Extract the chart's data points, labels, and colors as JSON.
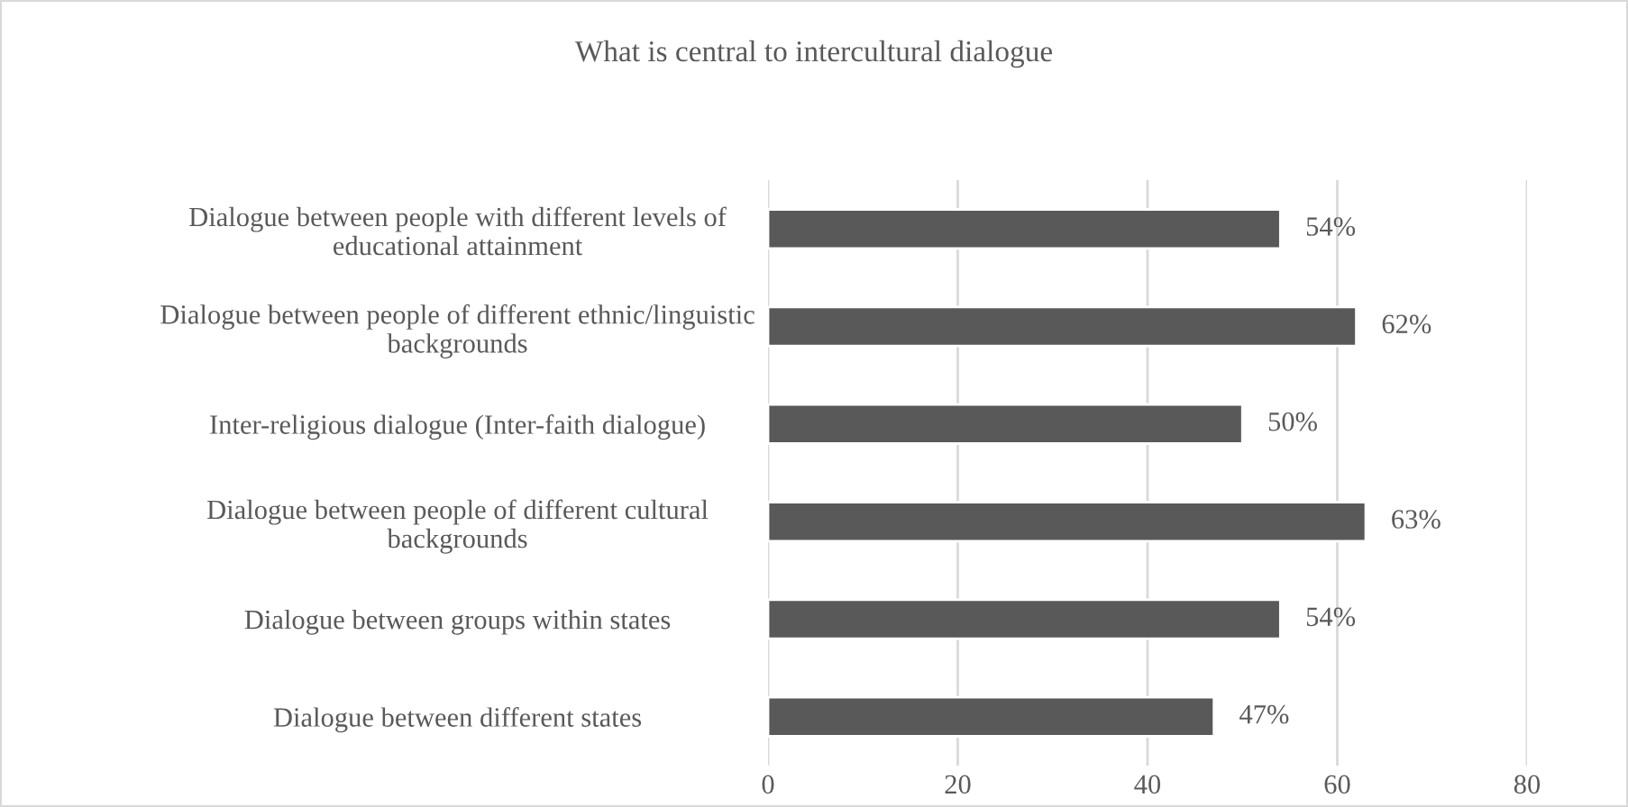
{
  "chart_data": {
    "type": "bar",
    "orientation": "horizontal",
    "title": "What is central to intercultural dialogue",
    "categories": [
      "Dialogue between people with different levels of\neducational attainment",
      "Dialogue between people of different ethnic/linguistic\nbackgrounds",
      "Inter-religious dialogue (Inter-faith dialogue)",
      "Dialogue between people of different cultural\nbackgrounds",
      "Dialogue between groups within states",
      "Dialogue between different states"
    ],
    "values": [
      54,
      62,
      50,
      63,
      54,
      47
    ],
    "value_labels": [
      "54%",
      "62%",
      "50%",
      "63%",
      "54%",
      "47%"
    ],
    "color": "#595959",
    "xlim": [
      0,
      80
    ],
    "xticks": [
      0,
      20,
      40,
      60,
      80
    ],
    "grid": "x",
    "legend": false
  }
}
